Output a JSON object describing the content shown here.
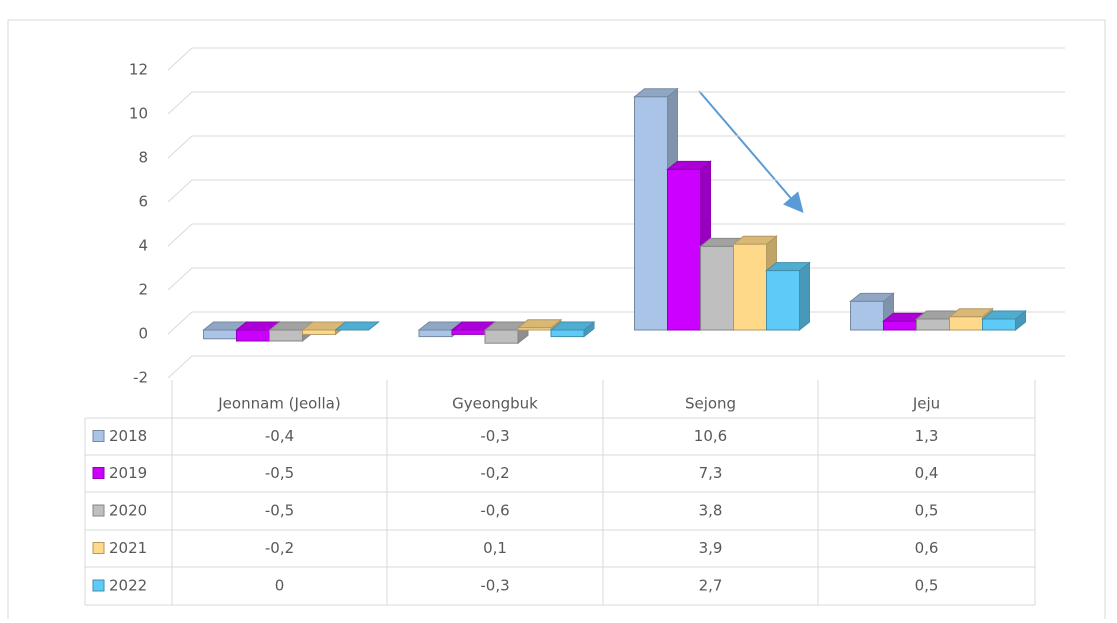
{
  "chart_data": {
    "type": "bar3d",
    "categories": [
      "Jeonnam (Jeolla)",
      "Gyeongbuk",
      "Sejong",
      "Jeju"
    ],
    "series": [
      {
        "name": "2018",
        "color": "#a9c4e6",
        "values": [
          -0.4,
          -0.3,
          10.6,
          1.3
        ],
        "value_labels": [
          "-0,4",
          "-0,3",
          "10,6",
          "1,3"
        ]
      },
      {
        "name": "2019",
        "color": "#cc00ff",
        "values": [
          -0.5,
          -0.2,
          7.3,
          0.4
        ],
        "value_labels": [
          "-0,5",
          "-0,2",
          "7,3",
          "0,4"
        ]
      },
      {
        "name": "2020",
        "color": "#bfbfbf",
        "values": [
          -0.5,
          -0.6,
          3.8,
          0.5
        ],
        "value_labels": [
          "-0,5",
          "-0,6",
          "3,8",
          "0,5"
        ]
      },
      {
        "name": "2021",
        "color": "#ffd98a",
        "values": [
          -0.2,
          0.1,
          3.9,
          0.6
        ],
        "value_labels": [
          "-0,2",
          "0,1",
          "3,9",
          "0,6"
        ]
      },
      {
        "name": "2022",
        "color": "#5ecbf7",
        "values": [
          0,
          -0.3,
          2.7,
          0.5
        ],
        "value_labels": [
          "0",
          "-0,3",
          "2,7",
          "0,5"
        ]
      }
    ],
    "ylim": [
      -2,
      12
    ],
    "yticks": [
      -2,
      0,
      2,
      4,
      6,
      8,
      10,
      12
    ],
    "grid": true,
    "data_table": true
  }
}
